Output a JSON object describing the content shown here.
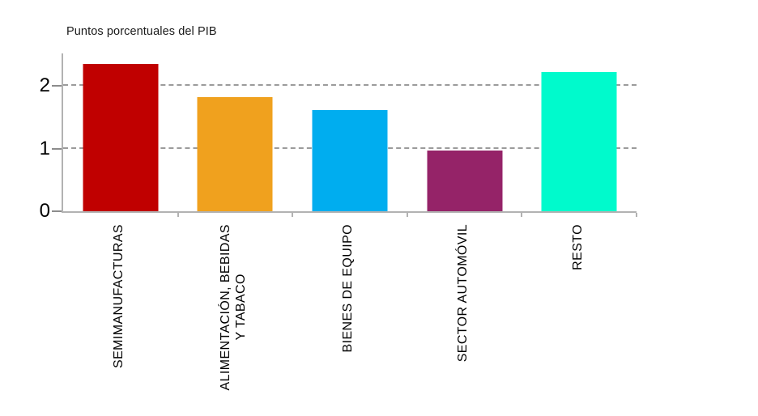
{
  "chart_data": {
    "type": "bar",
    "title": "Puntos porcentuales del PIB",
    "categories": [
      "SEMIMANUFACTURAS",
      "ALIMENTACIÓN, BEBIDAS\nY TABACO",
      "BIENES DE EQUIPO",
      "SECTOR AUTOMÓVIL",
      "RESTO"
    ],
    "values": [
      2.35,
      1.82,
      1.62,
      0.97,
      2.22
    ],
    "bar_colors": [
      "#c00000",
      "#f0a11e",
      "#00adef",
      "#952368",
      "#00facc"
    ],
    "yticks": [
      0,
      1,
      2
    ],
    "ylim": [
      0,
      2.52
    ],
    "xlabel": "",
    "ylabel": "Puntos porcentuales del PIB",
    "legend": "none",
    "grid": "horizontal dashed lines at y=1 and y=2",
    "axis_color": "#b2b2b2",
    "tick_color": "#8c8c8c",
    "grid_color": "#9b9b9b"
  }
}
